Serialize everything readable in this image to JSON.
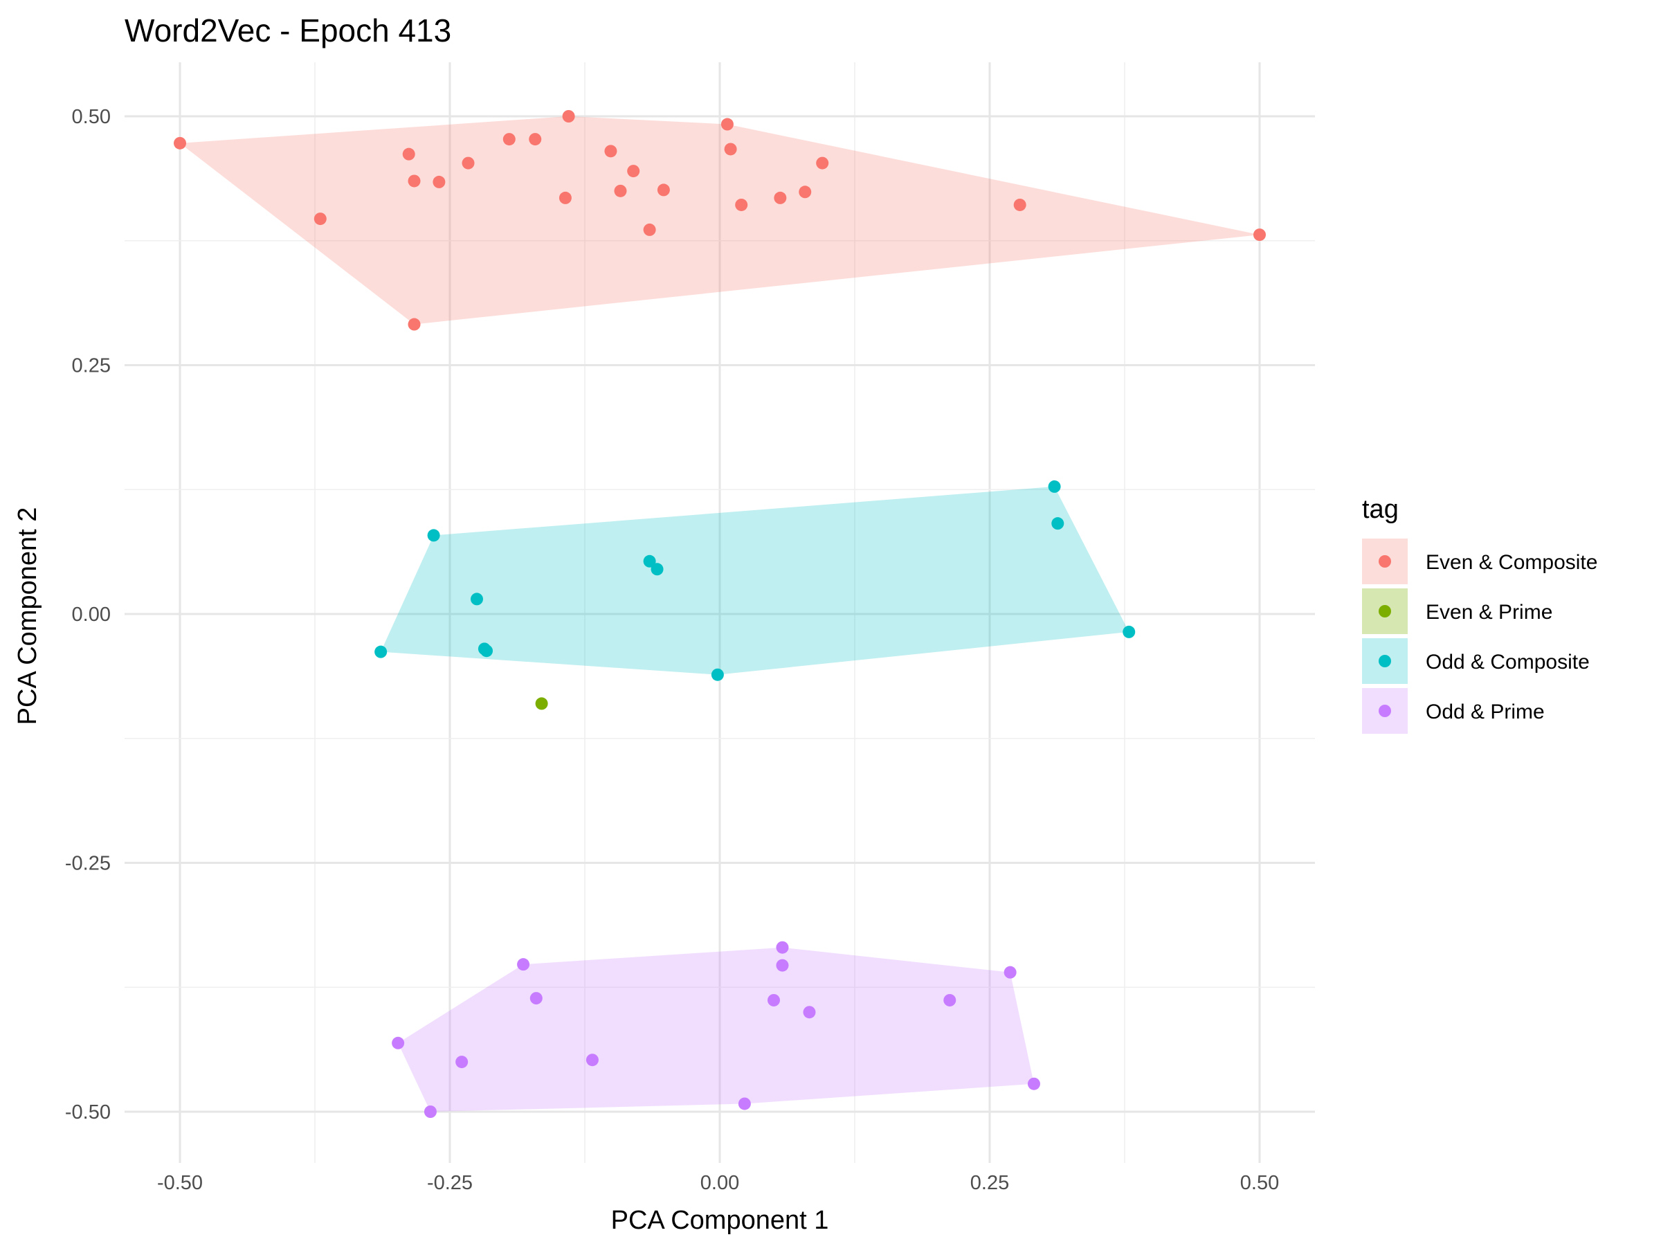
{
  "chart_data": {
    "type": "scatter",
    "title": "Word2Vec - Epoch 413",
    "xlabel": "PCA Component 1",
    "ylabel": "PCA Component 2",
    "xlim": [
      -0.5,
      0.5
    ],
    "ylim": [
      -0.5,
      0.5
    ],
    "x_ticks": [
      "-0.50",
      "-0.25",
      "0.00",
      "0.25",
      "0.50"
    ],
    "y_ticks": [
      "0.50",
      "0.25",
      "0.00",
      "-0.25",
      "-0.50"
    ],
    "grid": true,
    "legend": {
      "title": "tag",
      "position": "right"
    },
    "series": [
      {
        "name": "Even & Composite",
        "color": "#F8766D",
        "hull": true,
        "points": [
          [
            -0.5,
            0.473
          ],
          [
            -0.37,
            0.397
          ],
          [
            -0.288,
            0.462
          ],
          [
            -0.283,
            0.435
          ],
          [
            -0.26,
            0.434
          ],
          [
            -0.233,
            0.453
          ],
          [
            -0.195,
            0.477
          ],
          [
            -0.171,
            0.477
          ],
          [
            -0.14,
            0.5
          ],
          [
            -0.143,
            0.418
          ],
          [
            -0.101,
            0.465
          ],
          [
            -0.092,
            0.425
          ],
          [
            -0.08,
            0.445
          ],
          [
            -0.052,
            0.426
          ],
          [
            -0.065,
            0.386
          ],
          [
            0.007,
            0.492
          ],
          [
            0.01,
            0.467
          ],
          [
            0.02,
            0.411
          ],
          [
            0.056,
            0.418
          ],
          [
            0.079,
            0.424
          ],
          [
            0.095,
            0.453
          ],
          [
            0.278,
            0.411
          ],
          [
            0.5,
            0.381
          ],
          [
            -0.283,
            0.291
          ]
        ]
      },
      {
        "name": "Even & Prime",
        "color": "#7CAE00",
        "hull": false,
        "points": [
          [
            -0.165,
            -0.09
          ]
        ]
      },
      {
        "name": "Odd & Composite",
        "color": "#00BFC4",
        "hull": true,
        "points": [
          [
            -0.265,
            0.079
          ],
          [
            -0.225,
            0.015
          ],
          [
            -0.218,
            -0.035
          ],
          [
            -0.216,
            -0.037
          ],
          [
            -0.314,
            -0.038
          ],
          [
            -0.065,
            0.053
          ],
          [
            -0.058,
            0.045
          ],
          [
            -0.002,
            -0.061
          ],
          [
            0.31,
            0.128
          ],
          [
            0.313,
            0.091
          ],
          [
            0.379,
            -0.018
          ]
        ]
      },
      {
        "name": "Odd & Prime",
        "color": "#C77CFF",
        "hull": true,
        "points": [
          [
            -0.298,
            -0.431
          ],
          [
            -0.268,
            -0.5
          ],
          [
            -0.239,
            -0.45
          ],
          [
            -0.182,
            -0.352
          ],
          [
            -0.17,
            -0.386
          ],
          [
            -0.118,
            -0.448
          ],
          [
            0.023,
            -0.492
          ],
          [
            0.05,
            -0.388
          ],
          [
            0.058,
            -0.335
          ],
          [
            0.058,
            -0.353
          ],
          [
            0.083,
            -0.4
          ],
          [
            0.213,
            -0.388
          ],
          [
            0.269,
            -0.36
          ],
          [
            0.291,
            -0.472
          ]
        ]
      }
    ]
  }
}
